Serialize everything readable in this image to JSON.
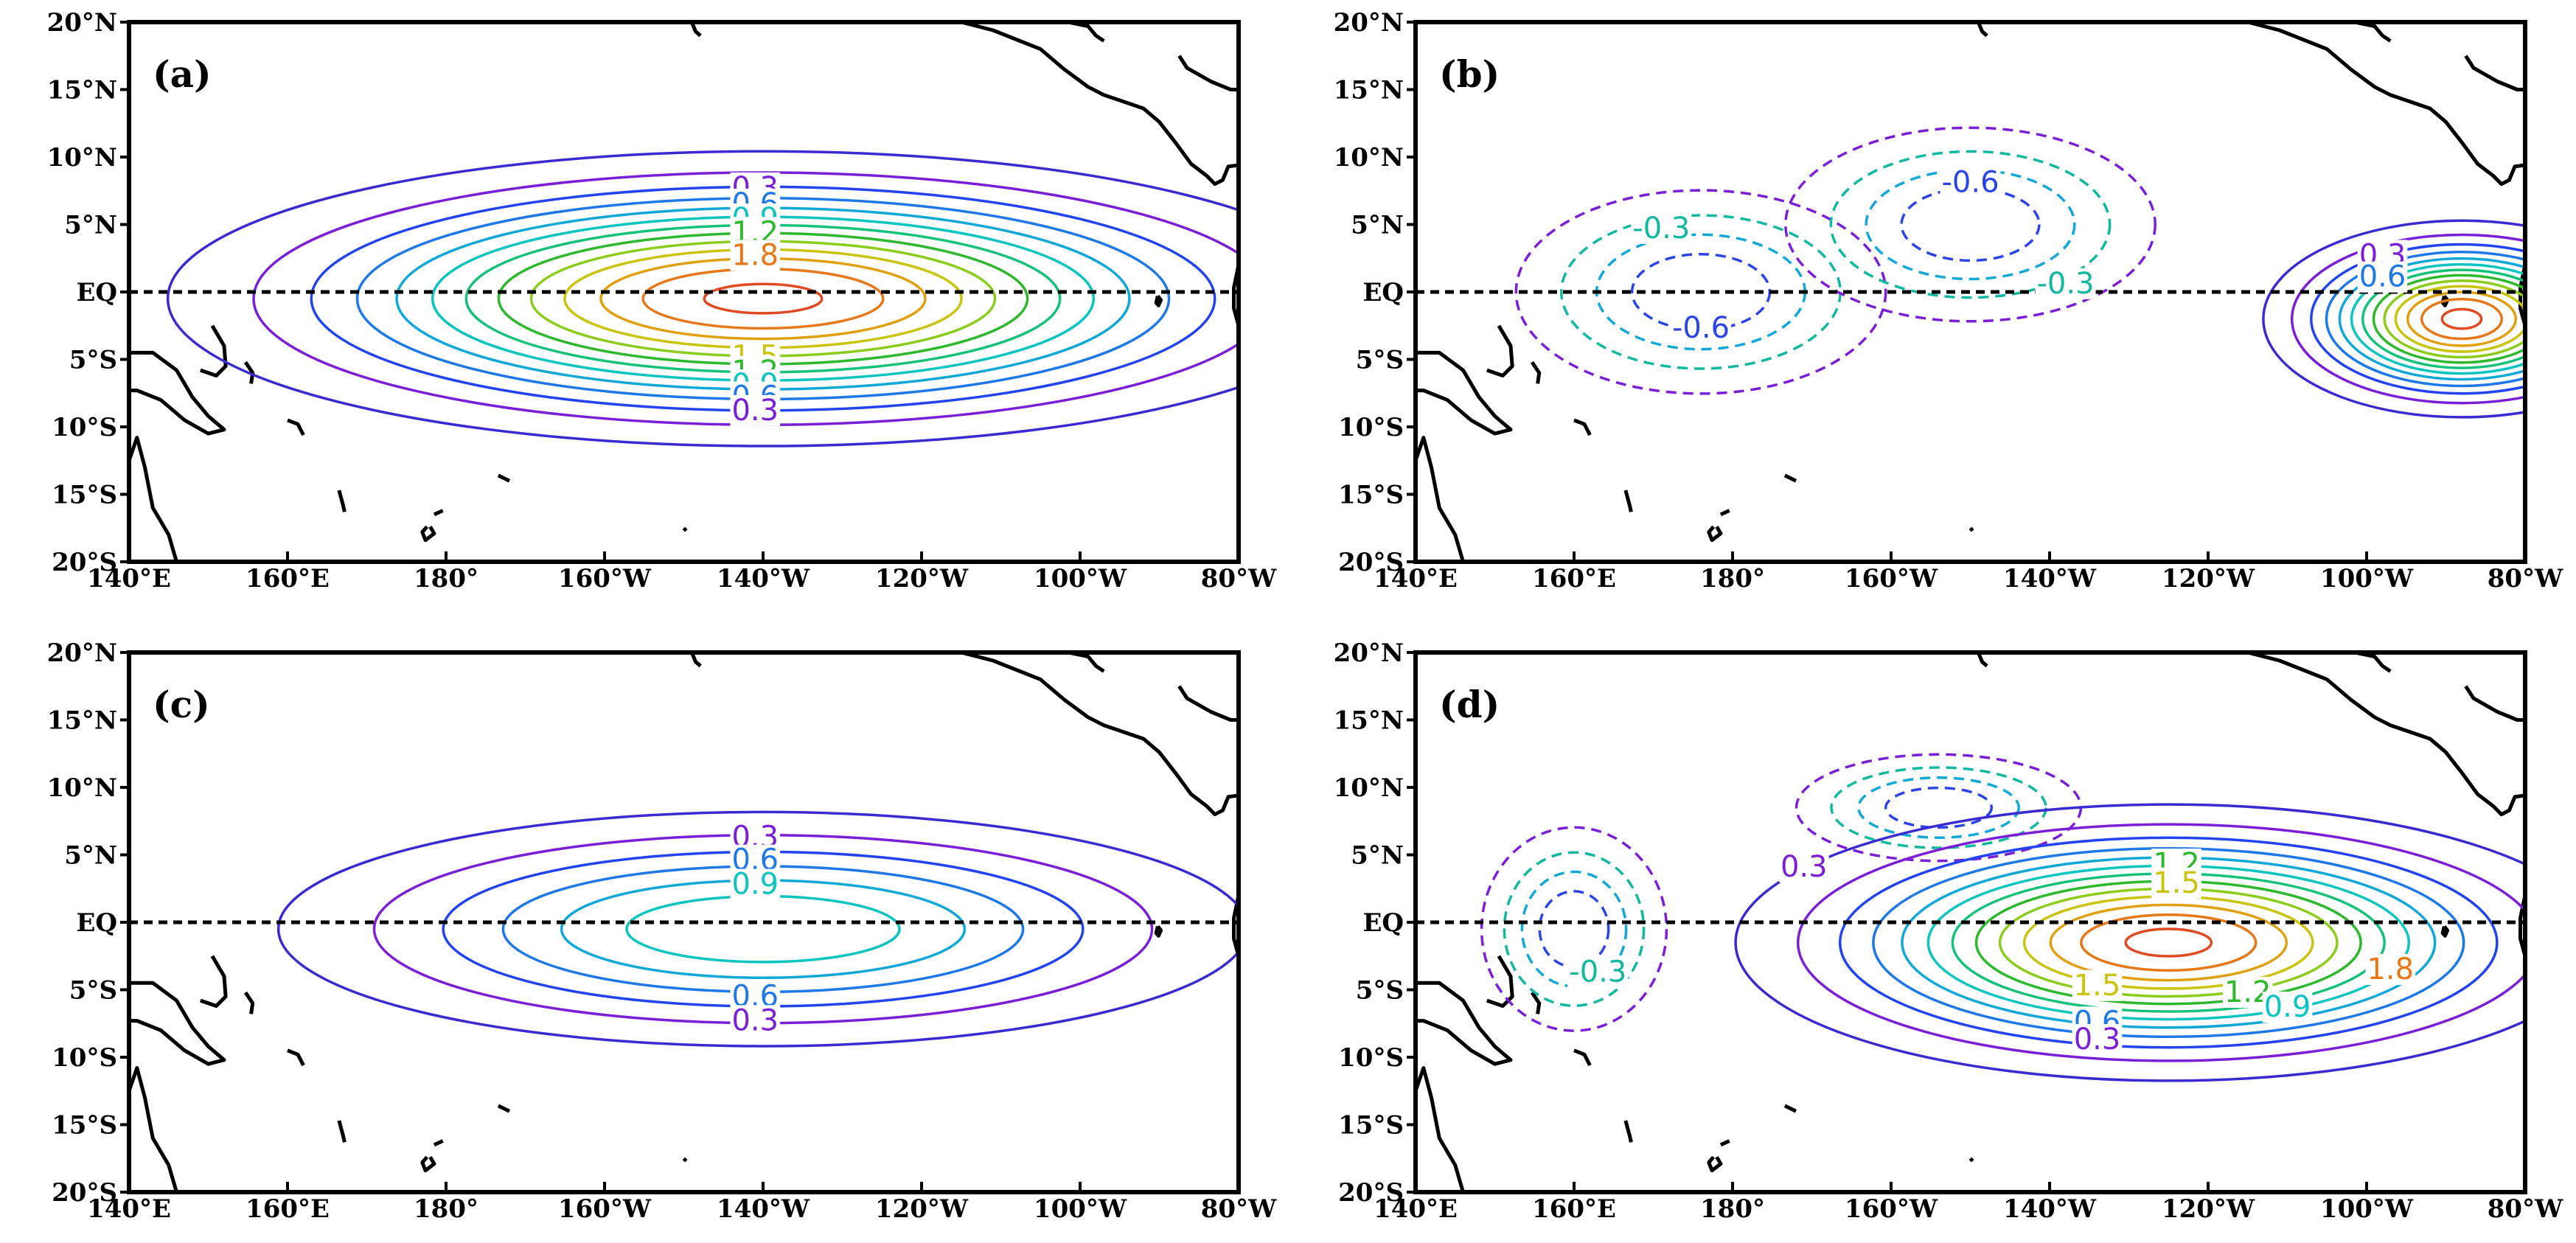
{
  "chart_data": [
    {
      "type": "contour",
      "panel": "(a)",
      "lon_ticks": [
        "140°E",
        "160°E",
        "180°",
        "160°W",
        "140°W",
        "120°W",
        "100°W",
        "80°W"
      ],
      "lat_ticks": [
        "20°N",
        "15°N",
        "10°N",
        "5°N",
        "EQ",
        "5°S",
        "10°S",
        "15°S",
        "20°S"
      ],
      "xlim": [
        140,
        280
      ],
      "ylim": [
        -20,
        20
      ],
      "dashed_equator": true,
      "contour_interval": 0.15,
      "fields": [
        {
          "lon": 220,
          "lat": -0.5,
          "amp": 2.0,
          "sx": 33,
          "sy": 4.8,
          "sign": 1
        }
      ],
      "labels": [
        {
          "text": "0.3",
          "lon": 219,
          "lat": 7.6
        },
        {
          "text": "0.6",
          "lon": 219,
          "lat": 6.4
        },
        {
          "text": "0.9",
          "lon": 219,
          "lat": 5.3
        },
        {
          "text": "1.2",
          "lon": 219,
          "lat": 4.3
        },
        {
          "text": "1.8",
          "lon": 219,
          "lat": 2.6
        },
        {
          "text": "1.5",
          "lon": 219,
          "lat": -4.9
        },
        {
          "text": "1.2",
          "lon": 219,
          "lat": -6.0
        },
        {
          "text": "0.9",
          "lon": 219,
          "lat": -7.0
        },
        {
          "text": "0.6",
          "lon": 219,
          "lat": -7.9
        },
        {
          "text": "0.3",
          "lon": 219,
          "lat": -8.9
        }
      ]
    },
    {
      "type": "contour",
      "panel": "(b)",
      "lon_ticks": [
        "140°E",
        "160°E",
        "180°",
        "160°W",
        "140°W",
        "120°W",
        "100°W",
        "80°W"
      ],
      "lat_ticks": [
        "20°N",
        "15°N",
        "10°N",
        "5°N",
        "EQ",
        "5°S",
        "10°S",
        "15°S",
        "20°S"
      ],
      "xlim": [
        140,
        280
      ],
      "ylim": [
        -20,
        20
      ],
      "dashed_equator": true,
      "contour_interval": 0.15,
      "fields": [
        {
          "lon": 176,
          "lat": 0.0,
          "amp": 0.75,
          "sx": 13,
          "sy": 4.2,
          "sign": -1
        },
        {
          "lon": 210,
          "lat": 5.0,
          "amp": 0.75,
          "sx": 13,
          "sy": 4.0,
          "sign": -1
        },
        {
          "lon": 272,
          "lat": -2.0,
          "amp": 2.0,
          "sx": 11,
          "sy": 3.2,
          "sign": 1
        }
      ],
      "labels": [
        {
          "text": "-0.3",
          "lon": 171,
          "lat": 4.6
        },
        {
          "text": "-0.6",
          "lon": 210,
          "lat": 8.0
        },
        {
          "text": "-0.6",
          "lon": 176,
          "lat": -2.8
        },
        {
          "text": "-0.3",
          "lon": 222,
          "lat": 0.5
        },
        {
          "text": "0.3",
          "lon": 262,
          "lat": 2.6
        },
        {
          "text": "0.6",
          "lon": 262,
          "lat": 1.0
        }
      ]
    },
    {
      "type": "contour",
      "panel": "(c)",
      "lon_ticks": [
        "140°E",
        "160°E",
        "180°",
        "160°W",
        "140°W",
        "120°W",
        "100°W",
        "80°W"
      ],
      "lat_ticks": [
        "20°N",
        "15°N",
        "10°N",
        "5°N",
        "EQ",
        "5°S",
        "10°S",
        "15°S",
        "20°S"
      ],
      "xlim": [
        140,
        280
      ],
      "ylim": [
        -20,
        20
      ],
      "dashed_equator": true,
      "contour_interval": 0.15,
      "fields": [
        {
          "lon": 220,
          "lat": -0.5,
          "amp": 1.05,
          "sx": 31,
          "sy": 4.4,
          "sign": 1
        }
      ],
      "labels": [
        {
          "text": "0.3",
          "lon": 219,
          "lat": 6.2
        },
        {
          "text": "0.6",
          "lon": 219,
          "lat": 4.5
        },
        {
          "text": "0.9",
          "lon": 219,
          "lat": 2.7
        },
        {
          "text": "0.6",
          "lon": 219,
          "lat": -5.6
        },
        {
          "text": "0.3",
          "lon": 219,
          "lat": -7.4
        }
      ]
    },
    {
      "type": "contour",
      "panel": "(d)",
      "lon_ticks": [
        "140°E",
        "160°E",
        "180°",
        "160°W",
        "140°W",
        "120°W",
        "100°W",
        "80°W"
      ],
      "lat_ticks": [
        "20°N",
        "15°N",
        "10°N",
        "5°N",
        "EQ",
        "5°S",
        "10°S",
        "15°S",
        "20°S"
      ],
      "xlim": [
        140,
        280
      ],
      "ylim": [
        -20,
        20
      ],
      "dashed_equator": true,
      "contour_interval": 0.15,
      "fields": [
        {
          "lon": 160,
          "lat": -0.5,
          "amp": 0.75,
          "sx": 6.5,
          "sy": 4.2,
          "sign": -1
        },
        {
          "lon": 206,
          "lat": 8.5,
          "amp": 0.75,
          "sx": 10,
          "sy": 2.2,
          "sign": -1
        },
        {
          "lon": 235,
          "lat": -1.5,
          "amp": 2.0,
          "sx": 24,
          "sy": 4.5,
          "sign": 1
        }
      ],
      "labels": [
        {
          "text": "-0.3",
          "lon": 163,
          "lat": -3.8
        },
        {
          "text": "0.3",
          "lon": 189,
          "lat": 4.0
        },
        {
          "text": "1.2",
          "lon": 236,
          "lat": 4.2
        },
        {
          "text": "1.5",
          "lon": 236,
          "lat": 2.8
        },
        {
          "text": "1.5",
          "lon": 226,
          "lat": -4.8
        },
        {
          "text": "1.2",
          "lon": 245,
          "lat": -5.3
        },
        {
          "text": "1.8",
          "lon": 263,
          "lat": -3.6
        },
        {
          "text": "0.9",
          "lon": 250,
          "lat": -6.4
        },
        {
          "text": "0.6",
          "lon": 226,
          "lat": -7.5
        },
        {
          "text": "0.3",
          "lon": 226,
          "lat": -8.8
        }
      ]
    }
  ],
  "contour_colors": {
    "0.15": "#3a2bd0",
    "0.3": "#7b1fd6",
    "0.45": "#2244ee",
    "0.6": "#1e78e6",
    "0.75": "#11a8d8",
    "0.9": "#0cc4c0",
    "1.05": "#16c27a",
    "1.2": "#2db82d",
    "1.35": "#8ccc1c",
    "1.5": "#c9c410",
    "1.65": "#e0a010",
    "1.8": "#e6781a",
    "1.95": "#e04a22",
    "2.1": "#d6141e",
    "2.25": "#c0106a"
  },
  "colors": {
    "coastline": "#000000",
    "equator": "#000000",
    "negative_0.3": "#10b8a0",
    "negative_0.45": "#11a8d8",
    "negative_0.6": "#2a44e8",
    "negative_0.75": "#7b1fd6"
  }
}
